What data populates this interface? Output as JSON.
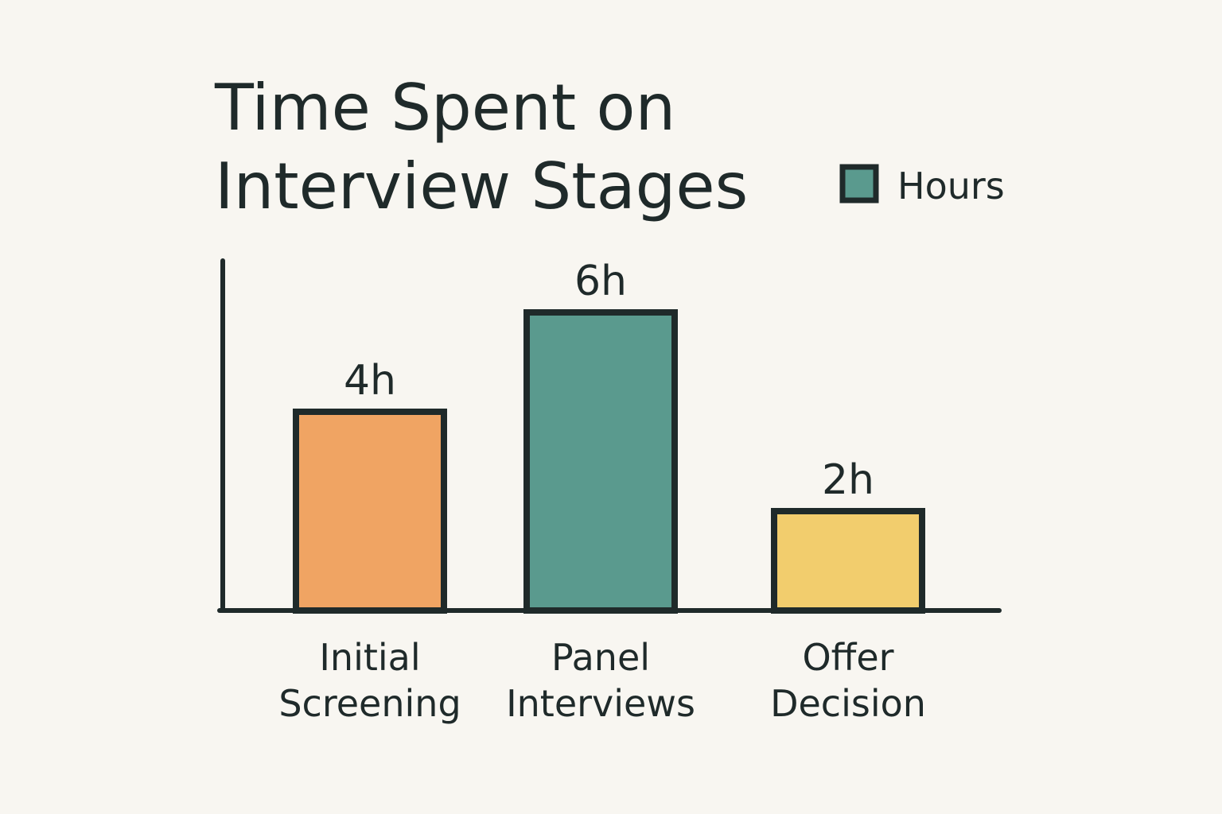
{
  "chart_data": {
    "type": "bar",
    "title_lines": [
      "Time Spent on",
      "Interview Stages"
    ],
    "categories": [
      [
        "Initial",
        "Screening"
      ],
      [
        "Panel",
        "Interviews"
      ],
      [
        "Offer",
        "Decision"
      ]
    ],
    "series": [
      {
        "name": "Hours",
        "values": [
          4,
          6,
          2
        ],
        "data_labels": [
          "4h",
          "6h",
          "2h"
        ],
        "colors": [
          "#f0a463",
          "#5a9a8e",
          "#f2cd6d"
        ]
      }
    ],
    "legend": {
      "label": "Hours",
      "color": "#5a9a8e",
      "position": "top-right"
    },
    "xlabel": "",
    "ylabel": "",
    "ylim": [
      0,
      7
    ],
    "grid": false
  }
}
